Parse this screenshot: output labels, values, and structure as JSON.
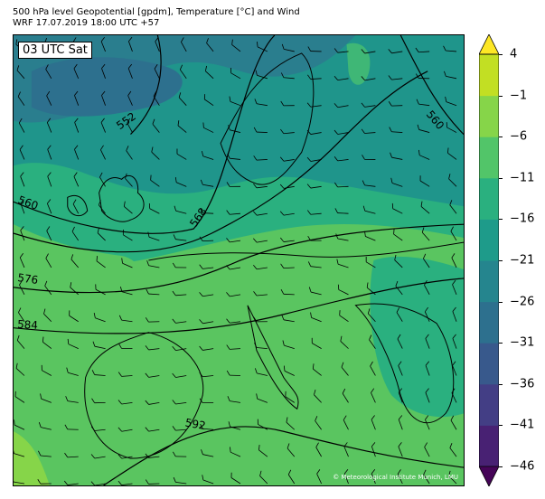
{
  "title_line1": "500 hPa level Geopotential [gpdm], Temperature [°C] and Wind",
  "title_line2": "WRF 17.07.2019 18:00 UTC +57",
  "time_label": "03 UTC Sat",
  "credit": "© Meteorological Institute Munich, LMU",
  "contour_labels": [
    "552",
    "560",
    "560",
    "568",
    "576",
    "584",
    "592"
  ],
  "colorbar": {
    "ticks": [
      "4",
      "−1",
      "−6",
      "−11",
      "−16",
      "−21",
      "−26",
      "−31",
      "−36",
      "−41",
      "−46"
    ],
    "colors": [
      "#450457",
      "#482173",
      "#433e85",
      "#38598c",
      "#2d708e",
      "#25858e",
      "#1e9b8a",
      "#2ab07f",
      "#52c569",
      "#86d549",
      "#c2df23",
      "#fde725"
    ]
  },
  "colors": {
    "land_outline": "#000000",
    "cold_band": "#2a7e8e",
    "mid_band": "#1f958b",
    "warm_band": "#3fb776",
    "hot_band": "#5ac560"
  }
}
